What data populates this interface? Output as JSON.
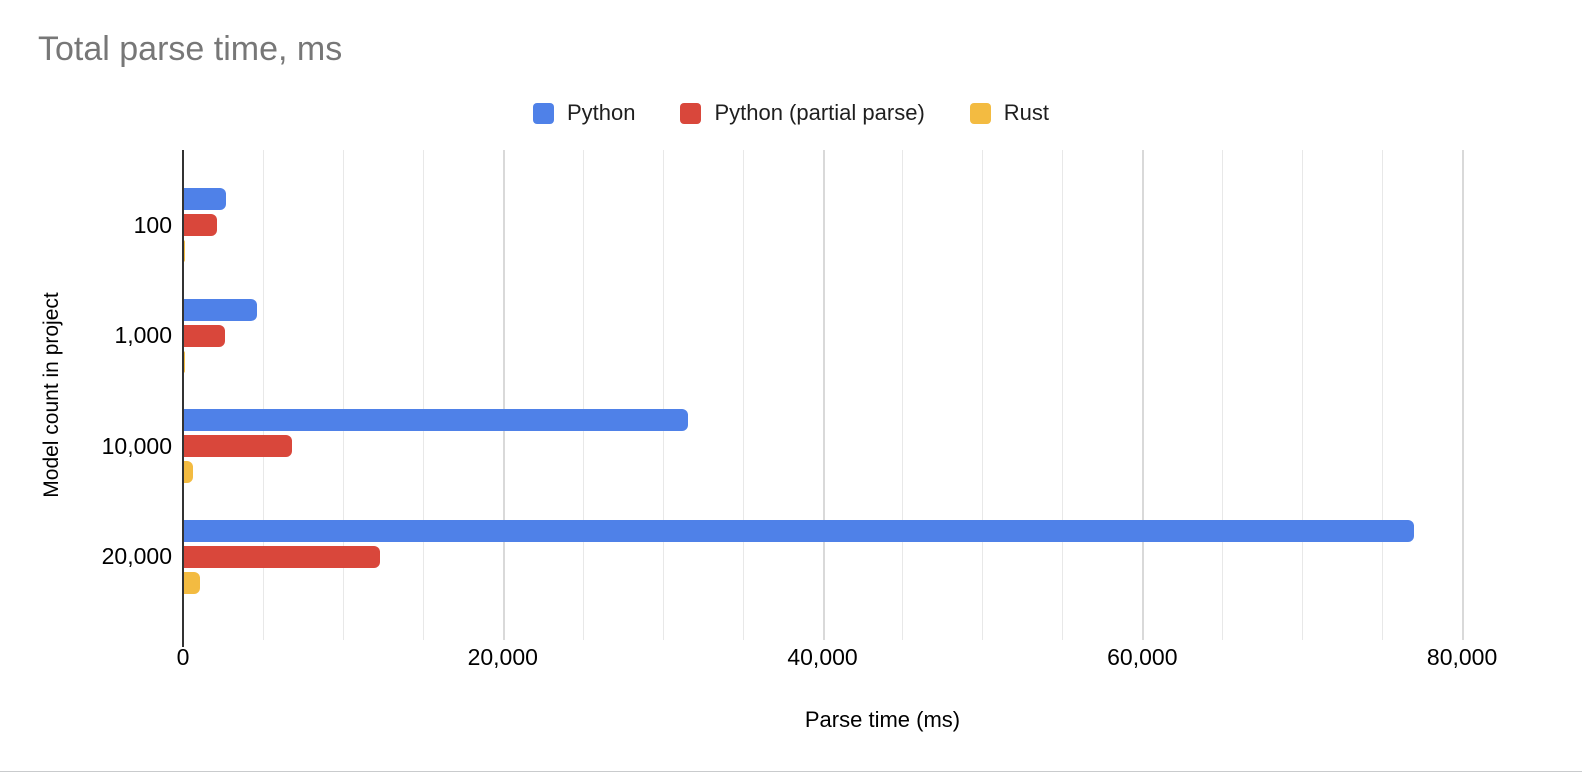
{
  "page": {
    "background": "#ffffff",
    "bottom_border_color": "#c9cbcd"
  },
  "chart_data": {
    "type": "bar",
    "orientation": "horizontal",
    "title": "Total parse time, ms",
    "xlabel": "Parse time (ms)",
    "ylabel": "Model count in project",
    "categories": [
      "100",
      "1,000",
      "10,000",
      "20,000"
    ],
    "series": [
      {
        "name": "Python",
        "color": "#4f81e8",
        "values": [
          2700,
          4600,
          31600,
          77000
        ]
      },
      {
        "name": "Python (partial parse)",
        "color": "#d9473b",
        "values": [
          2100,
          2600,
          6800,
          12300
        ]
      },
      {
        "name": "Rust",
        "color": "#f3bb41",
        "values": [
          110,
          140,
          600,
          1050
        ]
      }
    ],
    "xlim": [
      0,
      87500
    ],
    "x_ticks": [
      {
        "value": 0,
        "label": "0"
      },
      {
        "value": 20000,
        "label": "20,000"
      },
      {
        "value": 40000,
        "label": "40,000"
      },
      {
        "value": 60000,
        "label": "60,000"
      },
      {
        "value": 80000,
        "label": "80,000"
      }
    ],
    "minor_gridline_step": 5000,
    "gridline_max": 80000,
    "major_gridline_step": 20000,
    "grid": true,
    "legend_position": "top-center"
  },
  "colors": {
    "title_text": "#777777",
    "axis_text": "#000000",
    "legend_text": "#1f1f1f",
    "axis_line": "#333333",
    "gridline_minor": "#e8e8e8",
    "gridline_major": "#d9d9d9"
  }
}
